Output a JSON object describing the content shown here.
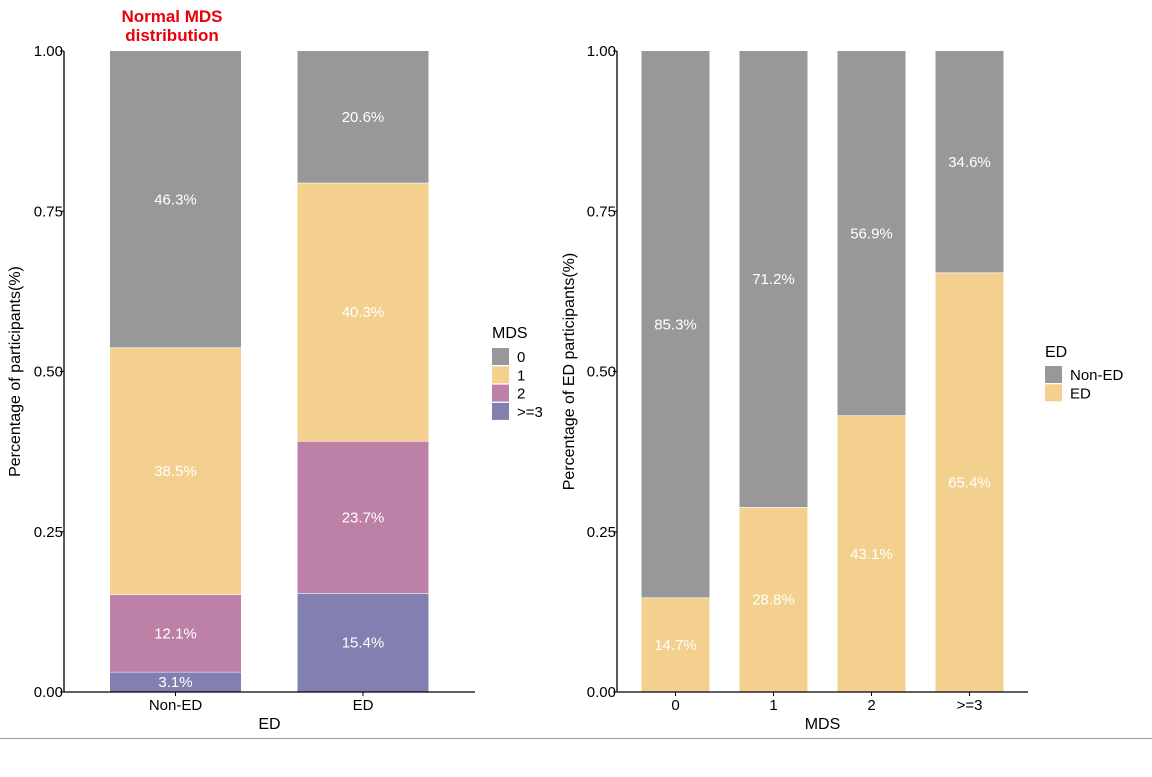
{
  "annotation": {
    "line1": "Normal MDS",
    "line2": "distribution",
    "color": "#e8000b"
  },
  "chart_data": [
    {
      "type": "bar",
      "stacked": true,
      "title": "",
      "xlabel": "ED",
      "ylabel": "Percentage of participants(%)",
      "ylim": [
        0,
        1
      ],
      "yticks": [
        "0.00",
        "0.25",
        "0.50",
        "0.75",
        "1.00"
      ],
      "categories": [
        "Non-ED",
        "ED"
      ],
      "legend_title": "MDS",
      "legend_position": "right",
      "series": [
        {
          "name": "0",
          "color": "#98989a",
          "values": [
            0.463,
            0.206
          ],
          "labels": [
            "46.3%",
            "20.6%"
          ]
        },
        {
          "name": "1",
          "color": "#f4d08e",
          "values": [
            0.385,
            0.403
          ],
          "labels": [
            "38.5%",
            "40.3%"
          ]
        },
        {
          "name": "2",
          "color": "#bd80a6",
          "values": [
            0.121,
            0.237
          ],
          "labels": [
            "12.1%",
            "23.7%"
          ]
        },
        {
          "name": ">=3",
          "color": "#8180b0",
          "values": [
            0.031,
            0.154
          ],
          "labels": [
            "3.1%",
            "15.4%"
          ]
        }
      ]
    },
    {
      "type": "bar",
      "stacked": true,
      "title": "",
      "xlabel": "MDS",
      "ylabel": "Percentage of ED participants(%)",
      "ylim": [
        0,
        1
      ],
      "yticks": [
        "0.00",
        "0.25",
        "0.50",
        "0.75",
        "1.00"
      ],
      "categories": [
        "0",
        "1",
        "2",
        ">=3"
      ],
      "legend_title": "ED",
      "legend_position": "right",
      "series": [
        {
          "name": "Non-ED",
          "color": "#98989a",
          "values": [
            0.853,
            0.712,
            0.569,
            0.346
          ],
          "labels": [
            "85.3%",
            "71.2%",
            "56.9%",
            "34.6%"
          ]
        },
        {
          "name": "ED",
          "color": "#f4d08e",
          "values": [
            0.147,
            0.288,
            0.431,
            0.654
          ],
          "labels": [
            "14.7%",
            "28.8%",
            "43.1%",
            "65.4%"
          ]
        }
      ]
    }
  ]
}
